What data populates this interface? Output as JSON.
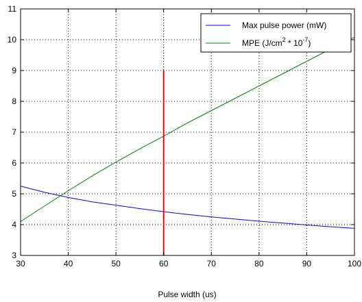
{
  "chart_data": {
    "type": "line",
    "title": "",
    "xlabel": "Pulse width (us)",
    "ylabel": "",
    "xlim": [
      30,
      100
    ],
    "ylim": [
      3,
      11
    ],
    "grid": true,
    "x_ticks": [
      30,
      40,
      50,
      60,
      70,
      80,
      90,
      100
    ],
    "y_ticks": [
      3,
      4,
      5,
      6,
      7,
      8,
      9,
      10,
      11
    ],
    "legend_position": "top-right",
    "series": [
      {
        "name": "Max pulse power (mW)",
        "color": "#0000ff",
        "x": [
          30,
          35,
          40,
          45,
          50,
          55,
          60,
          65,
          70,
          75,
          80,
          85,
          90,
          95,
          100
        ],
        "values": [
          5.25,
          5.05,
          4.88,
          4.74,
          4.63,
          4.52,
          4.42,
          4.33,
          4.25,
          4.18,
          4.11,
          4.05,
          3.99,
          3.93,
          3.88
        ]
      },
      {
        "name": "MPE (J/cm",
        "name_sup1": "2",
        "name_mid": " * 10",
        "name_sup2": "-7",
        "name_end": ")",
        "color": "#008000",
        "x": [
          30,
          35,
          40,
          45,
          50,
          55,
          60,
          65,
          70,
          75,
          80,
          85,
          90,
          95,
          100
        ],
        "values": [
          4.1,
          4.6,
          5.1,
          5.58,
          6.03,
          6.46,
          6.87,
          7.3,
          7.7,
          8.1,
          8.5,
          8.9,
          9.3,
          9.7,
          10.08
        ]
      }
    ],
    "vertical_marker": {
      "x": 60,
      "y_from": 3,
      "y_to": 9,
      "color": "#ff0000"
    }
  }
}
